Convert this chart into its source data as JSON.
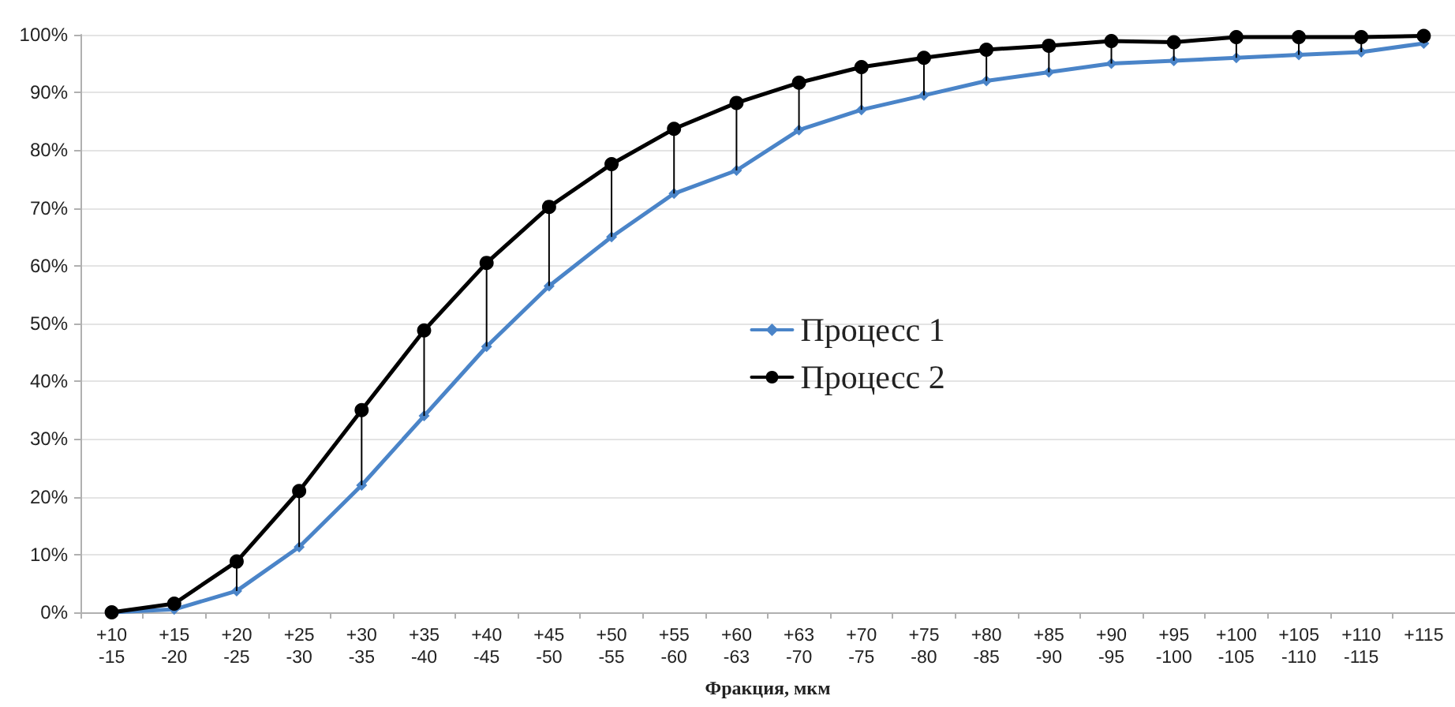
{
  "chart_data": {
    "type": "line",
    "xlabel": "Фракция, мкм",
    "categories": [
      "+10\n-15",
      "+15\n-20",
      "+20\n-25",
      "+25\n-30",
      "+30\n-35",
      "+35\n-40",
      "+40\n-45",
      "+45\n-50",
      "+50\n-55",
      "+55\n-60",
      "+60\n-63",
      "+63\n-70",
      "+70\n-75",
      "+75\n-80",
      "+80\n-85",
      "+85\n-90",
      "+90\n-95",
      "+95\n-100",
      "+100\n-105",
      "+105\n-110",
      "+110\n-115",
      "+115"
    ],
    "series": [
      {
        "name": "Процесс 1",
        "color": "#4a84c8",
        "marker": "diamond",
        "values": [
          0,
          0.5,
          3.7,
          11.3,
          22,
          34,
          46,
          56.5,
          65,
          72.5,
          76.5,
          83.5,
          87,
          89.5,
          92,
          93.5,
          95,
          95.5,
          96,
          96.5,
          97,
          98.5
        ]
      },
      {
        "name": "Процесс 2",
        "color": "#000000",
        "marker": "circle",
        "values": [
          0,
          1.5,
          8.8,
          21,
          35,
          48.8,
          60.5,
          70.2,
          77.6,
          83.7,
          88.2,
          91.7,
          94.4,
          96,
          97.4,
          98.1,
          98.9,
          98.7,
          99.6,
          99.6,
          99.6,
          99.8
        ],
        "errors": [
          null,
          [
            0.5,
            1.5
          ],
          [
            3.7,
            8.8
          ],
          [
            11.3,
            21
          ],
          [
            22,
            35
          ],
          [
            34,
            48.8
          ],
          [
            46,
            60.5
          ],
          [
            56.5,
            70.2
          ],
          [
            65,
            77.6
          ],
          [
            72.5,
            83.7
          ],
          [
            76.5,
            88.2
          ],
          [
            83.5,
            91.7
          ],
          [
            87,
            94.4
          ],
          [
            89.5,
            96
          ],
          [
            92,
            97.4
          ],
          [
            93.5,
            98.1
          ],
          [
            95,
            98.9
          ],
          [
            95.5,
            98.7
          ],
          [
            96,
            99.6
          ],
          [
            96.5,
            99.6
          ],
          [
            97,
            99.6
          ],
          [
            98.5,
            99.8
          ]
        ]
      }
    ],
    "ylim": [
      0,
      100
    ],
    "yticks": [
      {
        "value": 0,
        "label": "0%"
      },
      {
        "value": 10,
        "label": "10%"
      },
      {
        "value": 20,
        "label": "20%"
      },
      {
        "value": 30,
        "label": "30%"
      },
      {
        "value": 40,
        "label": "40%"
      },
      {
        "value": 50,
        "label": "50%"
      },
      {
        "value": 60,
        "label": "60%"
      },
      {
        "value": 70,
        "label": "70%"
      },
      {
        "value": 80,
        "label": "80%"
      },
      {
        "value": 90,
        "label": "90%"
      },
      {
        "value": 100,
        "label": "100%"
      }
    ],
    "grid": "y",
    "legend": "center",
    "line_style": "solid"
  }
}
